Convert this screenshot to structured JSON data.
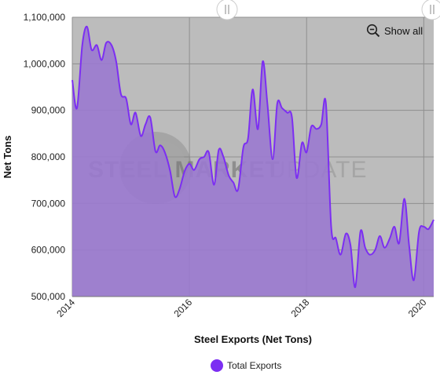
{
  "chart_data": {
    "type": "area",
    "title": "",
    "xlabel": "Steel Exports (Net Tons)",
    "ylabel": "Net Tons",
    "x_tick_labels": [
      "2014",
      "2016",
      "2018",
      "2020"
    ],
    "y_tick_labels": [
      "500,000",
      "600,000",
      "700,000",
      "800,000",
      "900,000",
      "1,000,000",
      "1,100,000"
    ],
    "xlim": [
      2014.0,
      2020.17
    ],
    "ylim": [
      500000,
      1100000
    ],
    "grid": true,
    "legend_position": "bottom",
    "series": [
      {
        "name": "Total Exports",
        "color": "#7c2ef2",
        "points": [
          [
            2014.0,
            965000
          ],
          [
            2014.08,
            905000
          ],
          [
            2014.17,
            1040000
          ],
          [
            2014.25,
            1080000
          ],
          [
            2014.33,
            1030000
          ],
          [
            2014.42,
            1040000
          ],
          [
            2014.5,
            1008000
          ],
          [
            2014.58,
            1045000
          ],
          [
            2014.67,
            1040000
          ],
          [
            2014.75,
            1005000
          ],
          [
            2014.83,
            935000
          ],
          [
            2014.92,
            925000
          ],
          [
            2015.0,
            870000
          ],
          [
            2015.08,
            895000
          ],
          [
            2015.17,
            845000
          ],
          [
            2015.25,
            870000
          ],
          [
            2015.33,
            885000
          ],
          [
            2015.42,
            812000
          ],
          [
            2015.5,
            825000
          ],
          [
            2015.58,
            810000
          ],
          [
            2015.67,
            770000
          ],
          [
            2015.75,
            715000
          ],
          [
            2015.83,
            730000
          ],
          [
            2015.92,
            770000
          ],
          [
            2016.0,
            785000
          ],
          [
            2016.08,
            772000
          ],
          [
            2016.17,
            795000
          ],
          [
            2016.25,
            800000
          ],
          [
            2016.33,
            810000
          ],
          [
            2016.42,
            740000
          ],
          [
            2016.5,
            815000
          ],
          [
            2016.58,
            800000
          ],
          [
            2016.67,
            760000
          ],
          [
            2016.75,
            745000
          ],
          [
            2016.83,
            730000
          ],
          [
            2016.92,
            820000
          ],
          [
            2017.0,
            840000
          ],
          [
            2017.08,
            945000
          ],
          [
            2017.17,
            860000
          ],
          [
            2017.25,
            1005000
          ],
          [
            2017.33,
            915000
          ],
          [
            2017.42,
            795000
          ],
          [
            2017.5,
            915000
          ],
          [
            2017.58,
            905000
          ],
          [
            2017.67,
            895000
          ],
          [
            2017.75,
            885000
          ],
          [
            2017.83,
            755000
          ],
          [
            2017.92,
            830000
          ],
          [
            2018.0,
            810000
          ],
          [
            2018.08,
            865000
          ],
          [
            2018.17,
            860000
          ],
          [
            2018.25,
            870000
          ],
          [
            2018.33,
            915000
          ],
          [
            2018.42,
            650000
          ],
          [
            2018.5,
            625000
          ],
          [
            2018.58,
            590000
          ],
          [
            2018.67,
            635000
          ],
          [
            2018.75,
            610000
          ],
          [
            2018.83,
            520000
          ],
          [
            2018.92,
            640000
          ],
          [
            2019.0,
            605000
          ],
          [
            2019.08,
            590000
          ],
          [
            2019.17,
            600000
          ],
          [
            2019.25,
            630000
          ],
          [
            2019.33,
            605000
          ],
          [
            2019.42,
            625000
          ],
          [
            2019.5,
            650000
          ],
          [
            2019.58,
            615000
          ],
          [
            2019.67,
            710000
          ],
          [
            2019.75,
            610000
          ],
          [
            2019.83,
            535000
          ],
          [
            2019.92,
            640000
          ],
          [
            2020.0,
            650000
          ],
          [
            2020.08,
            645000
          ],
          [
            2020.17,
            665000
          ]
        ]
      }
    ],
    "navigator_handles": 2,
    "watermark": [
      "STEEL MARKET",
      "UPDATE"
    ],
    "colors": {
      "plot_bg": "#bcbcbc",
      "area_fill": "#9a79cf",
      "line": "#7c2ef2",
      "grid": "#8f8f8f"
    }
  },
  "controls": {
    "show_all_label": "Show all"
  },
  "legend": {
    "total_exports_label": "Total Exports"
  }
}
